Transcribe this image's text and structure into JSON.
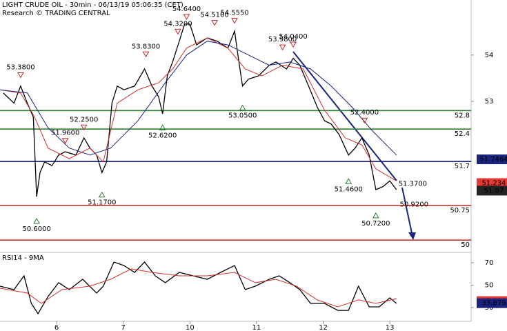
{
  "chart_data": [
    {
      "type": "line",
      "title": "LIGHT CRUDE OIL - 30min - 06/13/19 05:06:35 (CET)",
      "subtitle": "Research © TRADING CENTRAL",
      "xlim": [
        5.15,
        12.22
      ],
      "ylim": [
        49.75,
        55.19
      ],
      "yticks": [
        53,
        54
      ],
      "series": [
        {
          "color": "#000000",
          "x": [
            5.2,
            5.36,
            5.46,
            5.56,
            5.65,
            5.7,
            5.75,
            5.82,
            5.93,
            6.03,
            6.13,
            6.29,
            6.41,
            6.5,
            6.6,
            6.68,
            6.75,
            6.83,
            6.91,
            7.01,
            7.17,
            7.32,
            7.43,
            7.53,
            7.59,
            7.66,
            7.74,
            7.84,
            7.92,
            8.0,
            8.1,
            8.26,
            8.41,
            8.57,
            8.67,
            8.72,
            8.79,
            8.88,
            9.03,
            9.19,
            9.29,
            9.45,
            9.55,
            9.65,
            9.76,
            9.91,
            10.02,
            10.12,
            10.24,
            10.38,
            10.48,
            10.58,
            10.69,
            10.79,
            10.9,
            11.0,
            11.1
          ],
          "values": [
            53.18,
            52.96,
            53.33,
            52.96,
            52.66,
            50.94,
            51.46,
            51.69,
            51.61,
            51.84,
            51.91,
            51.84,
            52.21,
            51.99,
            51.84,
            51.46,
            51.69,
            52.96,
            53.33,
            53.25,
            53.33,
            53.7,
            53.33,
            53.1,
            52.73,
            53.55,
            53.85,
            54.3,
            54.67,
            54.67,
            54.22,
            54.37,
            54.3,
            54.15,
            54.52,
            54.0,
            53.33,
            53.48,
            53.55,
            53.78,
            53.85,
            53.7,
            53.93,
            53.78,
            53.4,
            52.88,
            52.58,
            52.51,
            52.28,
            51.84,
            51.99,
            52.21,
            51.84,
            51.09,
            51.16,
            51.28,
            51.09
          ]
        },
        {
          "color": "#d32f2f",
          "x": [
            5.15,
            5.46,
            5.67,
            5.87,
            6.19,
            6.5,
            6.7,
            6.91,
            7.22,
            7.53,
            7.74,
            7.95,
            8.26,
            8.57,
            8.83,
            9.08,
            9.39,
            9.7,
            10.02,
            10.33,
            10.58,
            10.79,
            11.1
          ],
          "values": [
            53.25,
            53.18,
            52.66,
            51.99,
            51.76,
            51.99,
            51.69,
            52.96,
            53.25,
            53.4,
            53.7,
            54.15,
            54.37,
            54.15,
            53.7,
            53.55,
            53.78,
            53.7,
            52.81,
            52.21,
            52.06,
            51.54,
            51.28
          ]
        },
        {
          "color": "#1a237e",
          "x": [
            5.15,
            5.56,
            5.87,
            6.19,
            6.5,
            6.81,
            7.22,
            7.63,
            7.95,
            8.26,
            8.57,
            8.88,
            9.19,
            9.5,
            9.81,
            10.12,
            10.43,
            10.74,
            11.1
          ],
          "values": [
            53.25,
            53.18,
            52.43,
            51.99,
            51.84,
            51.99,
            52.58,
            53.4,
            54.0,
            54.3,
            54.22,
            54.0,
            53.78,
            53.85,
            53.7,
            53.33,
            52.88,
            52.36,
            51.84
          ]
        }
      ],
      "levels": [
        {
          "value": 52.8,
          "color": "#2e7d32"
        },
        {
          "value": 52.4,
          "color": "#2e7d32"
        },
        {
          "value": 51.7,
          "color": "#1a237e"
        },
        {
          "value": 50.75,
          "color": "#d32f2f"
        },
        {
          "value": 50,
          "color": "#d32f2f"
        }
      ],
      "price_markers": [
        {
          "value": 51.7464,
          "color": "#1a237e"
        },
        {
          "value": 51.234,
          "color": "#e53935"
        },
        {
          "value": 51.07,
          "color": "#222222"
        }
      ],
      "annotations": [
        {
          "x": 5.46,
          "value": 53.38,
          "label": "53.3800",
          "marker": "down"
        },
        {
          "x": 5.7,
          "value": 50.6,
          "label": "50.6000",
          "marker": "up"
        },
        {
          "x": 6.13,
          "value": 51.96,
          "label": "51.9600",
          "marker": "down"
        },
        {
          "x": 6.41,
          "value": 52.25,
          "label": "52.2500",
          "marker": "down"
        },
        {
          "x": 6.68,
          "value": 51.17,
          "label": "51.1700",
          "marker": "up"
        },
        {
          "x": 7.34,
          "value": 53.83,
          "label": "53.8300",
          "marker": "down"
        },
        {
          "x": 7.59,
          "value": 52.62,
          "label": "52.6200",
          "marker": "up"
        },
        {
          "x": 7.82,
          "value": 54.32,
          "label": "54.3200",
          "marker": "down"
        },
        {
          "x": 7.95,
          "value": 54.64,
          "label": "54.6400",
          "marker": "down"
        },
        {
          "x": 8.37,
          "value": 54.51,
          "label": "54.5100",
          "marker": "down"
        },
        {
          "x": 8.67,
          "value": 54.555,
          "label": "54.5550",
          "marker": "down"
        },
        {
          "x": 8.79,
          "value": 53.05,
          "label": "53.0500",
          "marker": "up"
        },
        {
          "x": 9.39,
          "value": 53.98,
          "label": "53.9800",
          "marker": "down"
        },
        {
          "x": 9.55,
          "value": 54.04,
          "label": "54.0400",
          "marker": "down"
        },
        {
          "x": 10.62,
          "value": 52.4,
          "label": "52.4000",
          "marker": "down"
        },
        {
          "x": 10.38,
          "value": 51.46,
          "label": "51.4600",
          "marker": "up"
        },
        {
          "x": 11.13,
          "value": 51.37,
          "label": "51.3700"
        },
        {
          "x": 10.79,
          "value": 50.72,
          "label": "50.7200",
          "marker": "up"
        },
        {
          "x": 11.15,
          "value": 50.92,
          "label": "50.9200"
        }
      ]
    },
    {
      "type": "line",
      "title": "RSI14 - 9MA",
      "xlim": [
        5.15,
        12.22
      ],
      "xticks": [
        6,
        7,
        {
          "value": 8,
          "label": "10"
        },
        {
          "value": 9,
          "label": "11"
        },
        {
          "value": 10,
          "label": "12"
        },
        {
          "value": 11,
          "label": "13"
        }
      ],
      "ylim": [
        18.3,
        78
      ],
      "yticks": [
        30,
        50,
        70
      ],
      "series": [
        {
          "color": "#000000",
          "x": [
            5.15,
            5.36,
            5.51,
            5.62,
            5.72,
            5.87,
            6.03,
            6.19,
            6.39,
            6.6,
            6.7,
            6.86,
            7.01,
            7.17,
            7.32,
            7.48,
            7.63,
            7.84,
            8.05,
            8.26,
            8.46,
            8.67,
            8.83,
            8.98,
            9.19,
            9.34,
            9.5,
            9.65,
            9.81,
            10.02,
            10.22,
            10.38,
            10.53,
            10.69,
            10.84,
            11.0,
            11.1
          ],
          "values": [
            49.1,
            46.0,
            58.3,
            33.7,
            24.5,
            39.8,
            52.2,
            46.0,
            55.2,
            42.9,
            49.1,
            70.6,
            67.5,
            61.4,
            70.6,
            58.3,
            52.2,
            61.4,
            58.3,
            55.2,
            61.4,
            67.5,
            46.0,
            49.1,
            55.2,
            58.3,
            52.2,
            46.0,
            33.7,
            33.7,
            27.5,
            27.5,
            49.1,
            30.6,
            30.6,
            38.6,
            33.7
          ]
        },
        {
          "color": "#d32f2f",
          "x": [
            5.15,
            5.56,
            5.77,
            6.08,
            6.5,
            6.81,
            7.12,
            7.43,
            7.84,
            8.26,
            8.67,
            8.98,
            9.29,
            9.6,
            9.91,
            10.22,
            10.53,
            10.79,
            11.1
          ],
          "values": [
            47.2,
            42.9,
            33.7,
            46.0,
            49.1,
            55.2,
            64.5,
            61.4,
            58.3,
            58.3,
            61.4,
            52.2,
            55.2,
            49.1,
            36.8,
            30.6,
            36.8,
            33.7,
            38.0
          ]
        }
      ],
      "price_markers": [
        {
          "value": 35.804,
          "color": "#e53935"
        },
        {
          "value": 33.879,
          "color": "#1a237e"
        }
      ]
    }
  ]
}
